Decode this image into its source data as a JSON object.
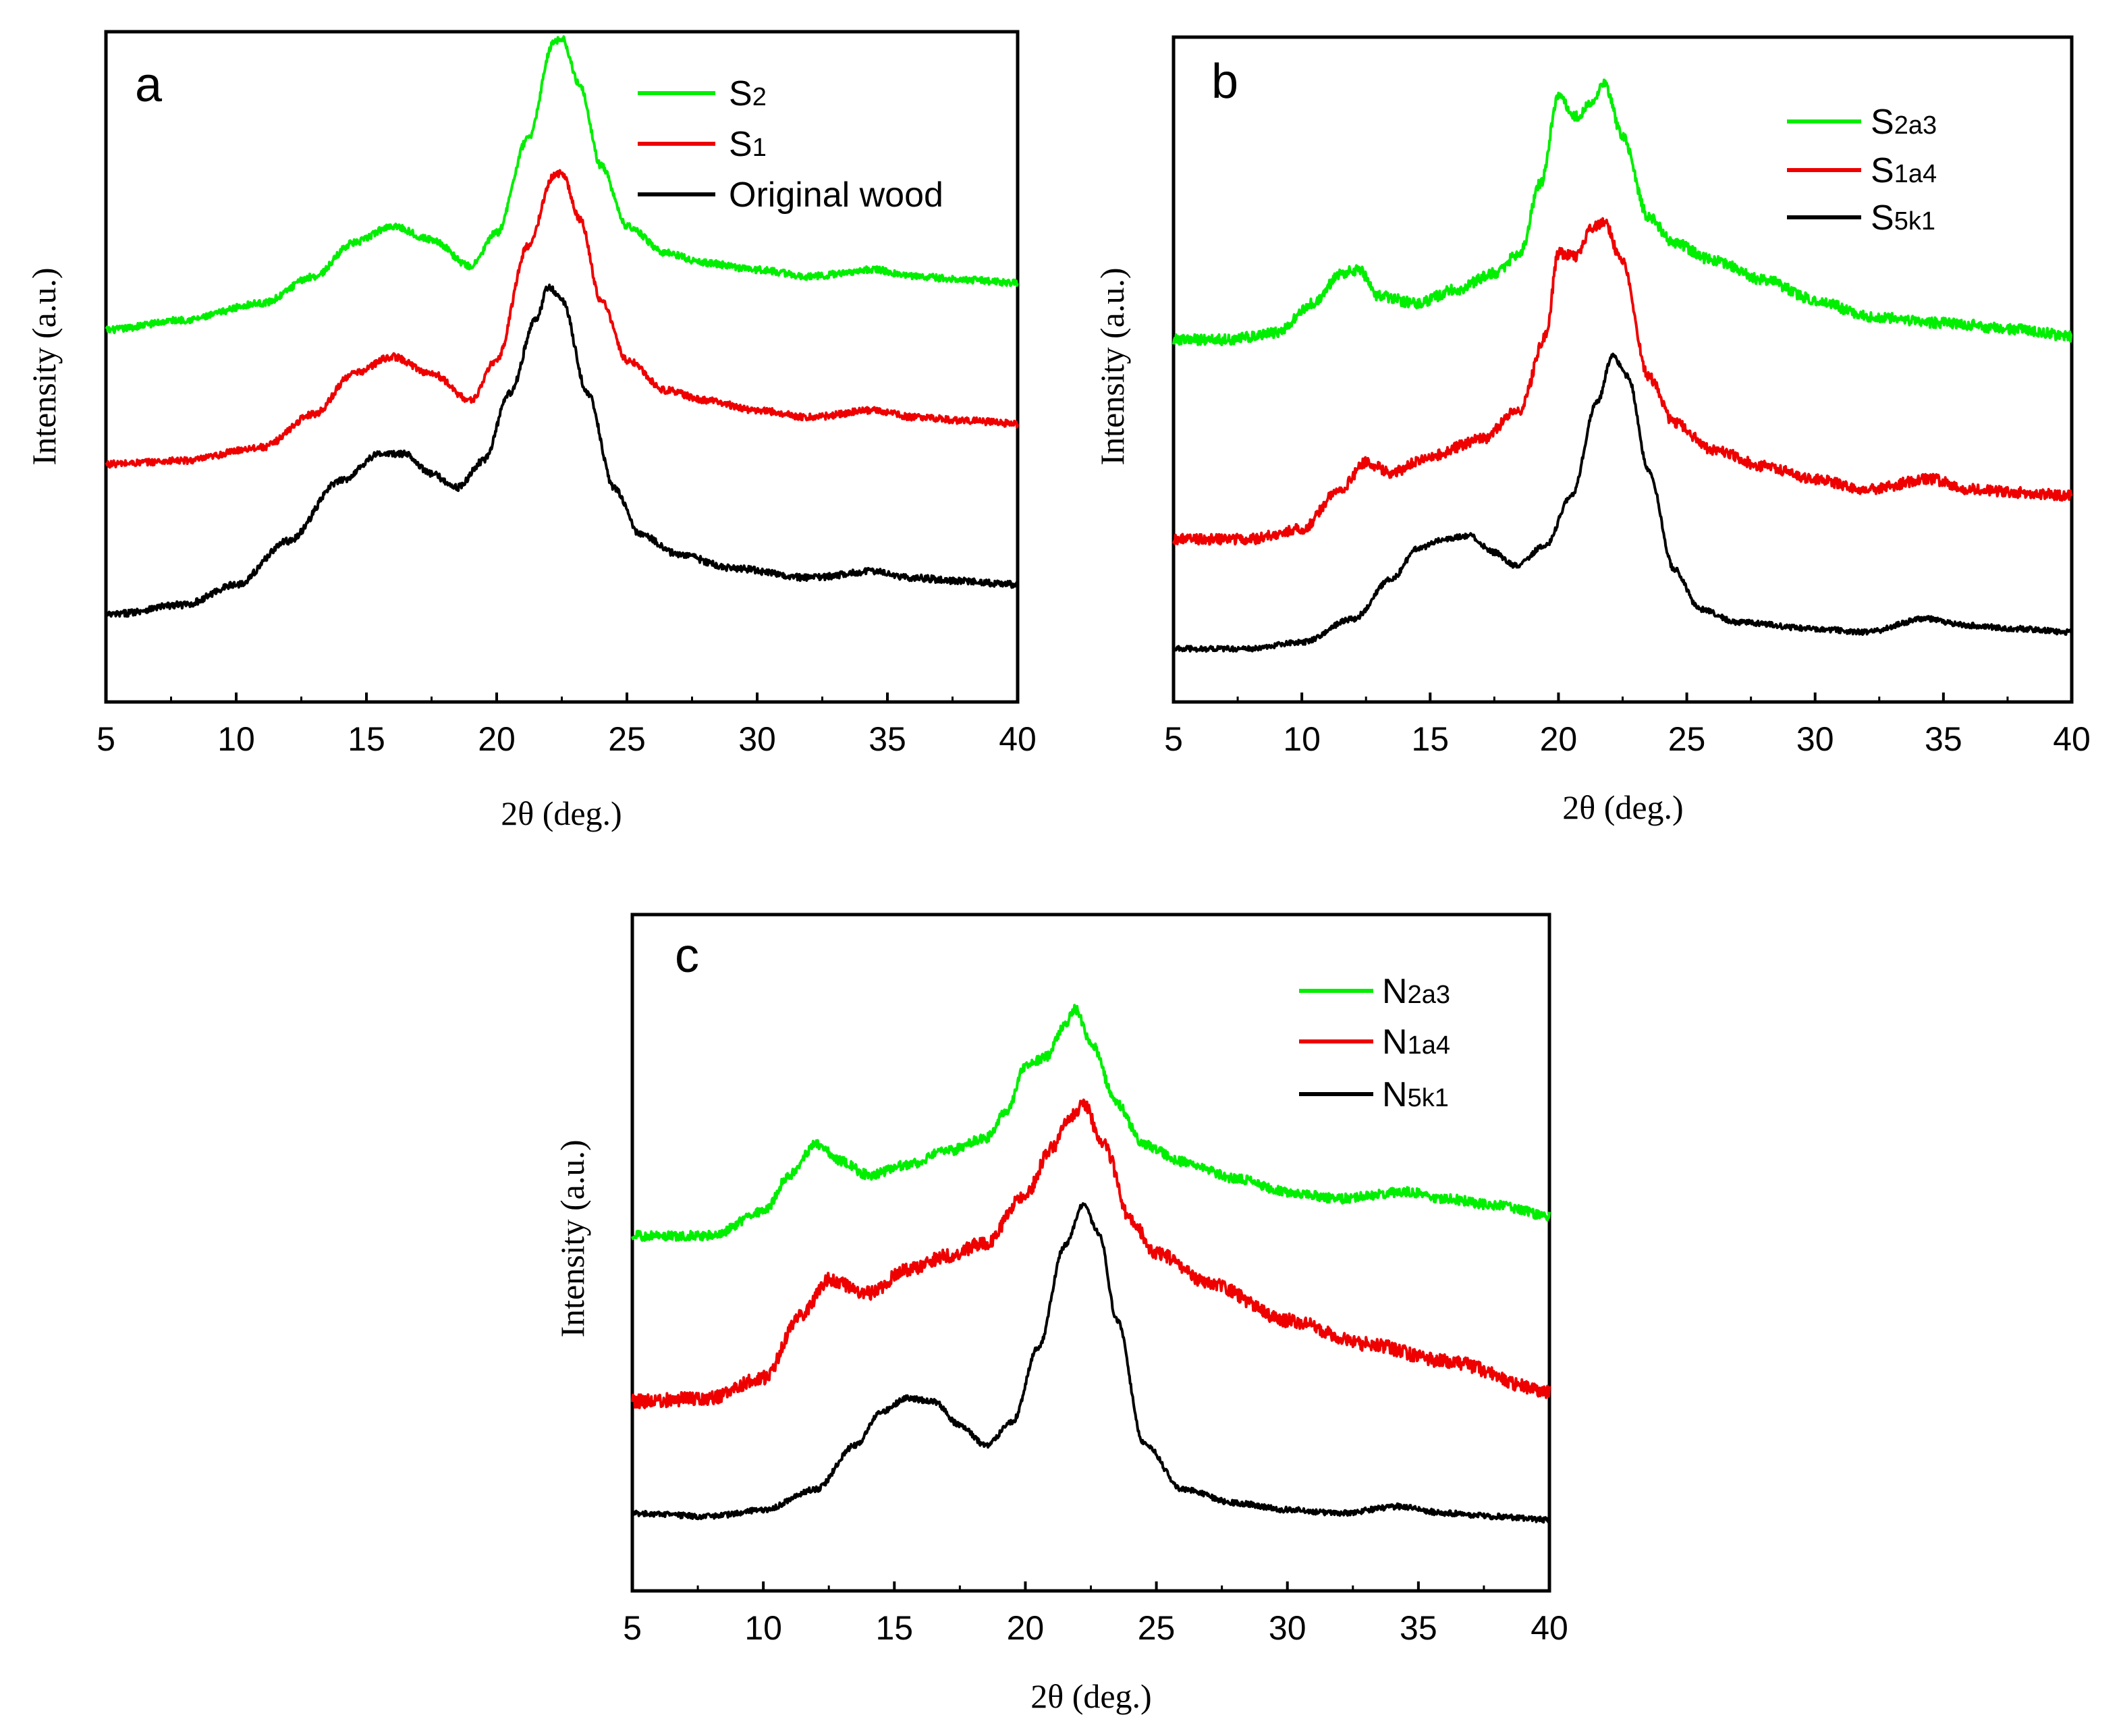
{
  "chart_data": [
    {
      "type": "line",
      "panel": "a",
      "xlabel": "2θ (deg.)",
      "ylabel": "Intensity (a.u.)",
      "xlim": [
        5,
        40
      ],
      "ylim": [
        0,
        100
      ],
      "xticks": [
        5,
        10,
        15,
        20,
        25,
        30,
        35,
        40
      ],
      "grid": false,
      "legend_position": "top-right",
      "series": [
        {
          "name": "S2",
          "base": "S",
          "sub": "2",
          "color": "#00ee00",
          "noise": 0.5,
          "x": [
            5,
            8,
            11,
            13,
            14.5,
            16,
            17.5,
            19,
            20,
            21.2,
            22.2,
            22.5,
            23.2,
            24,
            25,
            26.5,
            28,
            30,
            32,
            34.5,
            36,
            38,
            40
          ],
          "y": [
            55.5,
            57,
            59.5,
            63.5,
            68.5,
            71,
            69,
            65,
            70,
            84,
            98.5,
            99,
            92,
            80,
            71,
            67,
            65.5,
            64.5,
            63.5,
            64.5,
            63.5,
            63,
            62.5
          ]
        },
        {
          "name": "S1",
          "base": "S",
          "sub": "1",
          "color": "#ee0000",
          "noise": 0.5,
          "x": [
            5,
            8,
            11,
            13,
            14.5,
            16,
            17.5,
            19,
            20,
            21.2,
            22.2,
            22.5,
            23.2,
            24,
            25,
            26.5,
            28,
            30,
            32,
            34.5,
            36,
            38,
            40
          ],
          "y": [
            35.5,
            36,
            38,
            43,
            49,
            51.5,
            49,
            45,
            51,
            68,
            78.5,
            79,
            72,
            60,
            51,
            46.5,
            45,
            43.5,
            42.5,
            43.5,
            42.5,
            42,
            41.5
          ]
        },
        {
          "name": "Original wood",
          "base": "Original wood",
          "sub": "",
          "color": "#000000",
          "noise": 0.5,
          "x": [
            5,
            8,
            10,
            12,
            14,
            15.5,
            16.5,
            17.5,
            18.5,
            19.5,
            20.5,
            21.5,
            22,
            22.5,
            23.5,
            24.5,
            25.5,
            27,
            29,
            32,
            34.5,
            36,
            38,
            40
          ],
          "y": [
            13,
            14.5,
            17.5,
            24,
            33,
            37,
            37,
            34,
            32,
            36,
            46,
            57,
            62,
            60,
            46,
            32,
            25,
            22,
            20,
            18.5,
            19.5,
            18.5,
            18,
            17.5
          ]
        }
      ]
    },
    {
      "type": "line",
      "panel": "b",
      "xlabel": "2θ (deg.)",
      "ylabel": "Intensity (a.u.)",
      "xlim": [
        5,
        40
      ],
      "ylim": [
        0,
        100
      ],
      "xticks": [
        5,
        10,
        15,
        20,
        25,
        30,
        35,
        40
      ],
      "grid": false,
      "legend_position": "top-right",
      "series": [
        {
          "name": "S2a3",
          "base": "S",
          "sub": "2a3",
          "color": "#00ee00",
          "noise": 0.8,
          "x": [
            5,
            7,
            9,
            10.5,
            11.5,
            12.2,
            13,
            14.5,
            16,
            17.5,
            18.5,
            19.3,
            20,
            20.7,
            21.2,
            21.8,
            22.5,
            23.5,
            24.5,
            26,
            28,
            30,
            32,
            35,
            38,
            40
          ],
          "y": [
            54.5,
            54.5,
            55.5,
            60,
            64.5,
            65,
            61,
            60,
            62,
            64.5,
            67.5,
            78,
            91,
            88,
            90,
            93,
            85,
            73,
            69,
            66.5,
            63.5,
            60.5,
            58,
            57,
            56,
            55
          ]
        },
        {
          "name": "S1a4",
          "base": "S",
          "sub": "1a4",
          "color": "#ee0000",
          "noise": 0.8,
          "x": [
            5,
            8,
            10,
            11.5,
            12.5,
            13.5,
            15,
            17,
            18.5,
            19.5,
            20,
            20.7,
            21.3,
            21.8,
            22.5,
            23.5,
            24.5,
            26,
            28,
            30,
            32,
            34.5,
            36,
            38,
            40
          ],
          "y": [
            24.5,
            24.5,
            26,
            32,
            36,
            34.5,
            37,
            39.5,
            44,
            55,
            67.5,
            67,
            71.5,
            72,
            66,
            49,
            42,
            38,
            35.5,
            33.5,
            32,
            33.5,
            32,
            31.5,
            31
          ]
        },
        {
          "name": "S5k1",
          "base": "S",
          "sub": "5k1",
          "color": "#000000",
          "noise": 0.4,
          "x": [
            5,
            8,
            10,
            12,
            13.5,
            14.5,
            15.5,
            16.5,
            17.5,
            18.3,
            19.5,
            20.5,
            21.5,
            22.1,
            22.7,
            23.5,
            24.5,
            25.5,
            27,
            30,
            32,
            34.3,
            36,
            38,
            40
          ],
          "y": [
            8,
            8,
            9,
            12.5,
            18.5,
            23,
            24.5,
            25,
            22.5,
            20.5,
            23.5,
            31,
            45,
            52,
            49,
            35,
            20,
            14,
            12,
            11,
            10.5,
            12.5,
            11.5,
            11,
            10.5
          ]
        }
      ]
    },
    {
      "type": "line",
      "panel": "c",
      "xlabel": "2θ (deg.)",
      "ylabel": "Intensity (a.u.)",
      "xlim": [
        5,
        40
      ],
      "ylim": [
        0,
        100
      ],
      "xticks": [
        5,
        10,
        15,
        20,
        25,
        30,
        35,
        40
      ],
      "grid": false,
      "legend_position": "top-right",
      "series": [
        {
          "name": "N2a3",
          "base": "N",
          "sub": "2a3",
          "color": "#00ee00",
          "noise": 0.7,
          "x": [
            5,
            8,
            10,
            11,
            12,
            13,
            14,
            15.5,
            17,
            18.5,
            19.3,
            20,
            20.8,
            21.5,
            21.9,
            22.5,
            23.5,
            24.5,
            26,
            28,
            30,
            32,
            34.5,
            36,
            38,
            40
          ],
          "y": [
            52.5,
            52.5,
            56,
            61.5,
            66,
            63.5,
            61.5,
            63,
            65,
            67,
            71,
            77.5,
            79,
            83.5,
            86,
            81,
            72,
            66,
            63.5,
            61,
            59,
            58,
            59,
            58,
            57,
            55.5
          ]
        },
        {
          "name": "N1a4",
          "base": "N",
          "sub": "1a4",
          "color": "#ee0000",
          "noise": 1.0,
          "x": [
            5,
            8,
            10,
            11.5,
            12.5,
            14,
            15.5,
            17,
            18.5,
            20,
            21,
            21.7,
            22.2,
            23,
            24,
            25,
            27,
            30,
            33,
            36,
            40
          ],
          "y": [
            28,
            28.5,
            31.5,
            41,
            46,
            44,
            47.5,
            49.5,
            51.5,
            58.5,
            65.5,
            70,
            72,
            66,
            55,
            50,
            45.5,
            40,
            36.5,
            34,
            29.5
          ]
        },
        {
          "name": "N5k1",
          "base": "N",
          "sub": "5k1",
          "color": "#000000",
          "noise": 0.4,
          "x": [
            5,
            8,
            10,
            12,
            13.5,
            14.5,
            15.5,
            16.5,
            17.5,
            18.5,
            19.5,
            20.5,
            21.5,
            22.2,
            22.8,
            23.5,
            24.5,
            26,
            28,
            30,
            32,
            34.3,
            36,
            38,
            40
          ],
          "y": [
            11.5,
            11,
            12,
            15,
            21.5,
            26.5,
            28.5,
            28,
            24.5,
            21.5,
            25,
            36,
            51,
            57,
            53,
            40,
            22,
            15,
            13,
            12,
            11.5,
            12.5,
            11.5,
            11,
            10.5
          ]
        }
      ]
    }
  ]
}
